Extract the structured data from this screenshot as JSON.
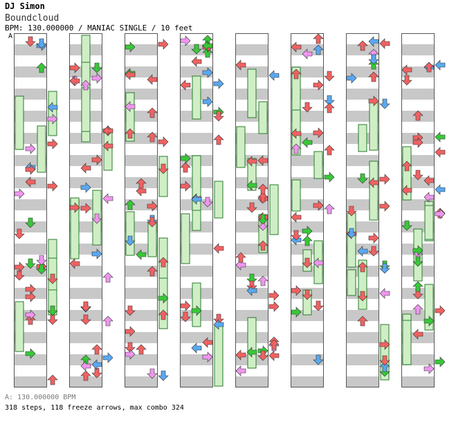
{
  "header": {
    "artist": "DJ Simon",
    "title": "Boundcloud",
    "info": "BPM: 130.000000 / MANIAC SINGLE / 10 feet"
  },
  "chart": {
    "bpm_marker": "A",
    "columns": 8,
    "measures_per_column": 8,
    "colors": {
      "red": "#f06262",
      "blue": "#5aa8f0",
      "pink": "#ee96ee",
      "green": "#38c838",
      "freeze_fill": "#cfeec6",
      "freeze_stroke": "#2a7a2a",
      "stripe": "#c8c8c8"
    }
  },
  "footer": {
    "bpm_list": "A: 130.000000 BPM",
    "stats": "318 steps, 118 freeze arrows, max combo 324"
  }
}
